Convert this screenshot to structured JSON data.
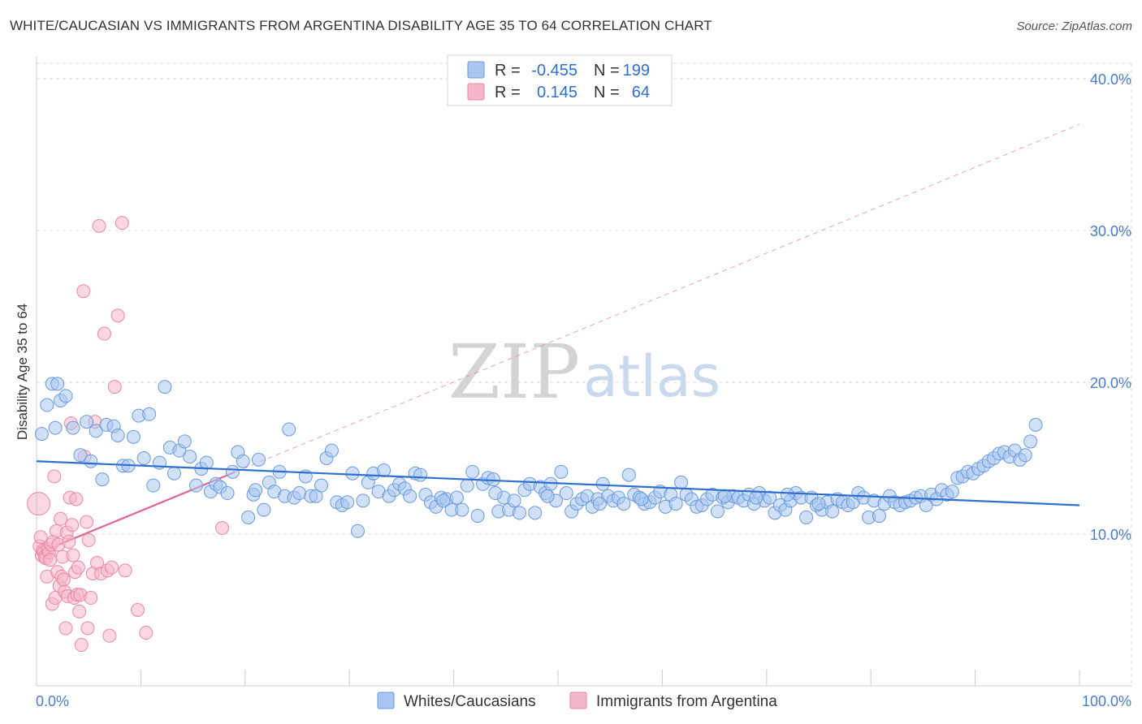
{
  "header": {
    "title": "WHITE/CAUCASIAN VS IMMIGRANTS FROM ARGENTINA DISABILITY AGE 35 TO 64 CORRELATION CHART",
    "source": "Source: ZipAtlas.com"
  },
  "watermark": {
    "zip": "ZIP",
    "atlas": "atlas"
  },
  "legend": {
    "rows": [
      {
        "r_label": "R =",
        "r_value": "-0.455",
        "n_label": "N =",
        "n_value": "199",
        "color": "#a8c6f0"
      },
      {
        "r_label": "R =",
        "r_value": "0.145",
        "n_label": "N =",
        "n_value": "64",
        "color": "#f5b6c8"
      }
    ]
  },
  "bottom_legend": {
    "items": [
      {
        "label": "Whites/Caucasians",
        "color": "#a8c6f0"
      },
      {
        "label": "Immigrants from Argentina",
        "color": "#f5b6c8"
      }
    ]
  },
  "colors": {
    "blue_fill": "#a8c6f0",
    "blue_stroke": "#6b9bdc",
    "blue_line": "#2f6fd0",
    "pink_fill": "#f5b6c8",
    "pink_stroke": "#e888a6",
    "pink_line": "#e06690",
    "grid": "#dddddd"
  },
  "chart_data": {
    "type": "scatter",
    "title": "WHITE/CAUCASIAN VS IMMIGRANTS FROM ARGENTINA DISABILITY AGE 35 TO 64 CORRELATION CHART",
    "xlabel": "",
    "ylabel": "Disability Age 35 to 64",
    "xlim": [
      0,
      100
    ],
    "ylim": [
      0,
      42
    ],
    "x_ticks": [
      {
        "value": 0,
        "label": "0.0%"
      },
      {
        "value": 100,
        "label": "100.0%"
      }
    ],
    "y_ticks": [
      {
        "value": 10,
        "label": "10.0%"
      },
      {
        "value": 20,
        "label": "20.0%"
      },
      {
        "value": 30,
        "label": "30.0%"
      },
      {
        "value": 40,
        "label": "40.0%"
      }
    ],
    "grid": true,
    "legend_position": "top-center",
    "series": [
      {
        "name": "Whites/Caucasians",
        "r": -0.455,
        "n": 199,
        "trend": {
          "x0": 0,
          "y0": 14.8,
          "x1": 100,
          "y1": 11.9
        },
        "points": [
          [
            0.5,
            16.6
          ],
          [
            1.0,
            18.5
          ],
          [
            1.5,
            19.9
          ],
          [
            1.8,
            17.0
          ],
          [
            2.0,
            19.9
          ],
          [
            2.3,
            18.8
          ],
          [
            2.8,
            19.1
          ],
          [
            3.5,
            17.0
          ],
          [
            4.2,
            15.2
          ],
          [
            4.8,
            17.4
          ],
          [
            5.2,
            14.8
          ],
          [
            5.7,
            16.8
          ],
          [
            6.3,
            13.6
          ],
          [
            6.7,
            17.2
          ],
          [
            7.4,
            17.1
          ],
          [
            7.8,
            16.5
          ],
          [
            8.3,
            14.5
          ],
          [
            8.8,
            14.5
          ],
          [
            9.3,
            16.4
          ],
          [
            9.8,
            17.8
          ],
          [
            10.3,
            15.0
          ],
          [
            10.8,
            17.9
          ],
          [
            11.2,
            13.2
          ],
          [
            11.8,
            14.7
          ],
          [
            12.3,
            19.7
          ],
          [
            12.8,
            15.7
          ],
          [
            13.2,
            14.0
          ],
          [
            13.7,
            15.5
          ],
          [
            14.2,
            16.1
          ],
          [
            14.7,
            15.1
          ],
          [
            15.3,
            13.2
          ],
          [
            15.8,
            14.3
          ],
          [
            16.3,
            14.7
          ],
          [
            16.7,
            12.8
          ],
          [
            17.2,
            13.3
          ],
          [
            17.6,
            13.1
          ],
          [
            18.3,
            12.7
          ],
          [
            18.8,
            14.1
          ],
          [
            19.3,
            15.4
          ],
          [
            19.8,
            14.8
          ],
          [
            20.3,
            11.1
          ],
          [
            20.8,
            12.6
          ],
          [
            21.3,
            14.9
          ],
          [
            21.8,
            11.6
          ],
          [
            22.3,
            13.4
          ],
          [
            22.8,
            12.8
          ],
          [
            23.3,
            14.1
          ],
          [
            23.8,
            12.5
          ],
          [
            24.2,
            16.9
          ],
          [
            24.7,
            12.4
          ],
          [
            25.2,
            12.7
          ],
          [
            25.8,
            13.8
          ],
          [
            26.3,
            12.5
          ],
          [
            26.8,
            12.5
          ],
          [
            27.3,
            13.2
          ],
          [
            27.8,
            15.0
          ],
          [
            28.3,
            15.5
          ],
          [
            28.8,
            12.1
          ],
          [
            29.3,
            11.9
          ],
          [
            29.8,
            12.1
          ],
          [
            30.3,
            14.0
          ],
          [
            30.8,
            10.2
          ],
          [
            31.3,
            12.2
          ],
          [
            31.8,
            13.4
          ],
          [
            32.3,
            14.0
          ],
          [
            32.8,
            12.8
          ],
          [
            33.3,
            14.2
          ],
          [
            33.8,
            12.5
          ],
          [
            34.3,
            12.9
          ],
          [
            34.8,
            13.3
          ],
          [
            35.3,
            13.0
          ],
          [
            35.8,
            12.5
          ],
          [
            36.3,
            14.0
          ],
          [
            36.8,
            13.9
          ],
          [
            37.3,
            12.6
          ],
          [
            37.8,
            12.1
          ],
          [
            38.3,
            11.8
          ],
          [
            38.8,
            12.4
          ],
          [
            39.3,
            12.3
          ],
          [
            39.8,
            11.6
          ],
          [
            40.3,
            12.4
          ],
          [
            40.8,
            11.6
          ],
          [
            41.3,
            13.2
          ],
          [
            41.8,
            14.1
          ],
          [
            42.3,
            11.2
          ],
          [
            42.8,
            13.3
          ],
          [
            43.3,
            13.7
          ],
          [
            43.8,
            13.6
          ],
          [
            44.3,
            11.5
          ],
          [
            44.8,
            12.4
          ],
          [
            45.3,
            11.6
          ],
          [
            45.8,
            12.2
          ],
          [
            46.3,
            11.4
          ],
          [
            46.8,
            12.9
          ],
          [
            47.3,
            13.3
          ],
          [
            47.8,
            11.4
          ],
          [
            48.3,
            13.1
          ],
          [
            48.8,
            12.7
          ],
          [
            49.3,
            13.3
          ],
          [
            49.8,
            12.2
          ],
          [
            50.3,
            14.1
          ],
          [
            50.8,
            12.7
          ],
          [
            51.3,
            11.5
          ],
          [
            51.8,
            12.0
          ],
          [
            52.3,
            12.3
          ],
          [
            52.8,
            12.5
          ],
          [
            53.3,
            11.8
          ],
          [
            53.8,
            12.3
          ],
          [
            54.3,
            13.3
          ],
          [
            54.8,
            12.5
          ],
          [
            55.3,
            12.2
          ],
          [
            55.8,
            12.4
          ],
          [
            56.3,
            12.0
          ],
          [
            56.8,
            13.9
          ],
          [
            57.3,
            12.6
          ],
          [
            57.8,
            12.4
          ],
          [
            58.3,
            12.0
          ],
          [
            58.8,
            12.1
          ],
          [
            59.3,
            12.4
          ],
          [
            59.8,
            12.8
          ],
          [
            60.3,
            11.8
          ],
          [
            60.8,
            12.6
          ],
          [
            61.3,
            12.0
          ],
          [
            61.8,
            13.4
          ],
          [
            62.3,
            12.6
          ],
          [
            62.8,
            12.3
          ],
          [
            63.3,
            11.8
          ],
          [
            63.8,
            11.9
          ],
          [
            64.3,
            12.3
          ],
          [
            64.8,
            12.6
          ],
          [
            65.3,
            11.5
          ],
          [
            65.8,
            12.4
          ],
          [
            66.3,
            12.1
          ],
          [
            66.8,
            12.5
          ],
          [
            67.3,
            12.4
          ],
          [
            67.8,
            12.2
          ],
          [
            68.3,
            12.6
          ],
          [
            68.8,
            12.0
          ],
          [
            69.3,
            12.7
          ],
          [
            69.8,
            12.2
          ],
          [
            70.3,
            12.4
          ],
          [
            70.8,
            11.4
          ],
          [
            71.3,
            11.9
          ],
          [
            71.8,
            11.6
          ],
          [
            72.3,
            12.2
          ],
          [
            72.8,
            12.7
          ],
          [
            73.3,
            12.4
          ],
          [
            73.8,
            11.1
          ],
          [
            74.3,
            12.4
          ],
          [
            74.8,
            11.9
          ],
          [
            75.3,
            11.6
          ],
          [
            75.8,
            12.1
          ],
          [
            76.3,
            11.5
          ],
          [
            76.8,
            12.3
          ],
          [
            77.3,
            12.1
          ],
          [
            77.8,
            11.9
          ],
          [
            78.3,
            12.1
          ],
          [
            78.8,
            12.7
          ],
          [
            79.3,
            12.4
          ],
          [
            79.8,
            11.1
          ],
          [
            80.3,
            12.2
          ],
          [
            80.8,
            11.2
          ],
          [
            81.3,
            12.0
          ],
          [
            81.8,
            12.5
          ],
          [
            82.3,
            12.1
          ],
          [
            82.8,
            11.9
          ],
          [
            83.3,
            12.1
          ],
          [
            83.8,
            12.2
          ],
          [
            84.3,
            12.4
          ],
          [
            84.8,
            12.5
          ],
          [
            85.3,
            11.9
          ],
          [
            85.8,
            12.6
          ],
          [
            86.3,
            12.3
          ],
          [
            86.8,
            12.9
          ],
          [
            87.3,
            12.6
          ],
          [
            87.8,
            12.8
          ],
          [
            88.3,
            13.7
          ],
          [
            88.8,
            13.8
          ],
          [
            89.3,
            14.1
          ],
          [
            89.8,
            14.0
          ],
          [
            90.3,
            14.3
          ],
          [
            90.8,
            14.5
          ],
          [
            91.3,
            14.8
          ],
          [
            91.8,
            15.0
          ],
          [
            92.3,
            15.3
          ],
          [
            92.8,
            15.4
          ],
          [
            93.3,
            15.1
          ],
          [
            93.8,
            15.5
          ],
          [
            94.3,
            14.9
          ],
          [
            94.8,
            15.2
          ],
          [
            95.3,
            16.1
          ],
          [
            95.8,
            17.2
          ],
          [
            54.0,
            12.0
          ],
          [
            21.0,
            12.9
          ],
          [
            69.0,
            12.4
          ],
          [
            72.0,
            12.6
          ],
          [
            49.0,
            12.5
          ],
          [
            39.0,
            12.2
          ],
          [
            44.0,
            12.7
          ],
          [
            58.0,
            12.3
          ],
          [
            66.0,
            12.5
          ],
          [
            75.0,
            12.0
          ]
        ]
      },
      {
        "name": "Immigrants from Argentina",
        "r": 0.145,
        "n": 64,
        "trend": {
          "x0": 0,
          "y0": 8.7,
          "x1": 100,
          "y1": 37.0
        },
        "trend_solid_until_x": 19,
        "points": [
          [
            0.2,
            12.0
          ],
          [
            0.3,
            9.2
          ],
          [
            0.4,
            9.8
          ],
          [
            0.5,
            8.6
          ],
          [
            0.6,
            8.9
          ],
          [
            0.7,
            8.8
          ],
          [
            0.8,
            8.5
          ],
          [
            0.9,
            8.4
          ],
          [
            1.0,
            7.2
          ],
          [
            1.1,
            9.0
          ],
          [
            1.2,
            8.8
          ],
          [
            1.3,
            8.3
          ],
          [
            1.4,
            9.3
          ],
          [
            1.5,
            5.4
          ],
          [
            1.6,
            9.5
          ],
          [
            1.7,
            13.8
          ],
          [
            1.8,
            5.8
          ],
          [
            1.9,
            10.2
          ],
          [
            2.0,
            7.5
          ],
          [
            2.1,
            9.3
          ],
          [
            2.2,
            6.6
          ],
          [
            2.3,
            11.0
          ],
          [
            2.4,
            7.2
          ],
          [
            2.5,
            8.5
          ],
          [
            2.6,
            7.0
          ],
          [
            2.7,
            6.2
          ],
          [
            2.8,
            3.8
          ],
          [
            2.9,
            10.1
          ],
          [
            3.0,
            5.9
          ],
          [
            3.1,
            9.5
          ],
          [
            3.2,
            12.4
          ],
          [
            3.3,
            17.3
          ],
          [
            3.4,
            10.6
          ],
          [
            3.5,
            8.6
          ],
          [
            3.6,
            5.8
          ],
          [
            3.7,
            7.5
          ],
          [
            3.8,
            12.3
          ],
          [
            3.9,
            6.0
          ],
          [
            4.0,
            7.8
          ],
          [
            4.1,
            4.9
          ],
          [
            4.2,
            6.0
          ],
          [
            4.3,
            2.7
          ],
          [
            4.5,
            26.0
          ],
          [
            4.6,
            15.1
          ],
          [
            4.8,
            10.8
          ],
          [
            4.9,
            3.8
          ],
          [
            5.0,
            9.6
          ],
          [
            5.2,
            5.8
          ],
          [
            5.4,
            7.4
          ],
          [
            5.6,
            17.4
          ],
          [
            5.8,
            8.1
          ],
          [
            6.0,
            30.3
          ],
          [
            6.2,
            7.4
          ],
          [
            6.5,
            23.2
          ],
          [
            6.8,
            7.6
          ],
          [
            7.0,
            3.3
          ],
          [
            7.2,
            7.8
          ],
          [
            7.5,
            19.7
          ],
          [
            7.8,
            24.4
          ],
          [
            8.2,
            30.5
          ],
          [
            8.5,
            7.6
          ],
          [
            9.7,
            5.0
          ],
          [
            10.5,
            3.5
          ],
          [
            17.8,
            10.4
          ]
        ]
      }
    ]
  }
}
